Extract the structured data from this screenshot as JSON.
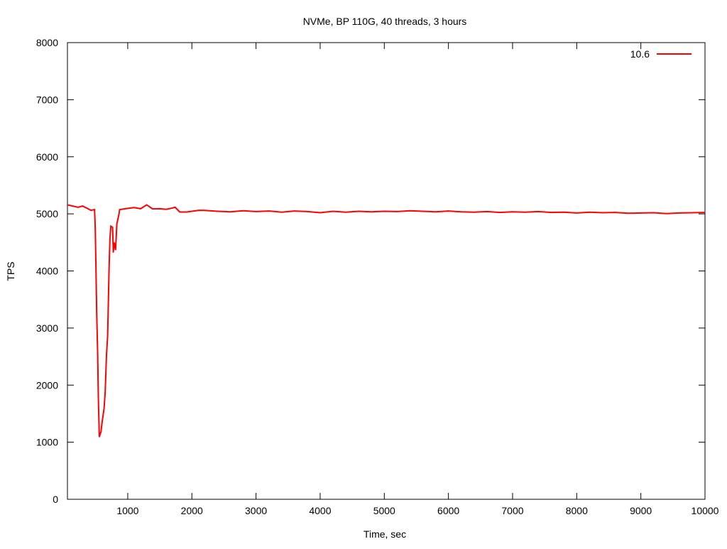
{
  "chart_data": {
    "type": "line",
    "title": "NVMe, BP 110G, 40 threads, 3 hours",
    "xlabel": "Time, sec",
    "ylabel": "TPS",
    "xlim": [
      60,
      10000
    ],
    "ylim": [
      0,
      8000
    ],
    "xticks": [
      1000,
      2000,
      3000,
      4000,
      5000,
      6000,
      7000,
      8000,
      9000,
      10000
    ],
    "yticks": [
      0,
      1000,
      2000,
      3000,
      4000,
      5000,
      6000,
      7000,
      8000
    ],
    "grid": false,
    "legend": "top-right",
    "series": [
      {
        "name": "10.6",
        "color": "#ff0000",
        "x": [
          60,
          225,
          296,
          427,
          483,
          494,
          505,
          516,
          531,
          542,
          557,
          583,
          605,
          631,
          649,
          668,
          686,
          697,
          708,
          723,
          737,
          764,
          775,
          789,
          811,
          830,
          859,
          875,
          1000,
          1100,
          1200,
          1295,
          1387,
          1500,
          1600,
          1700,
          1738,
          1811,
          1922,
          2107,
          2200,
          2400,
          2600,
          2800,
          3000,
          3200,
          3400,
          3600,
          3800,
          4000,
          4200,
          4400,
          4600,
          4800,
          5000,
          5200,
          5400,
          5600,
          5800,
          6000,
          6200,
          6400,
          6600,
          6800,
          7000,
          7200,
          7400,
          7600,
          7800,
          8000,
          8200,
          8400,
          8600,
          8800,
          9000,
          9200,
          9400,
          9600,
          9800,
          10000
        ],
        "y": [
          5158,
          5116,
          5137,
          5062,
          5075,
          4743,
          4017,
          3271,
          2525,
          1803,
          1095,
          1182,
          1385,
          1592,
          1882,
          2504,
          2861,
          3375,
          3980,
          4577,
          4785,
          4764,
          4328,
          4494,
          4370,
          4826,
          4971,
          5075,
          5096,
          5110,
          5090,
          5158,
          5087,
          5090,
          5080,
          5103,
          5116,
          5033,
          5033,
          5062,
          5060,
          5045,
          5035,
          5055,
          5040,
          5050,
          5030,
          5050,
          5040,
          5020,
          5045,
          5030,
          5045,
          5035,
          5045,
          5040,
          5055,
          5045,
          5035,
          5050,
          5035,
          5030,
          5040,
          5025,
          5035,
          5030,
          5040,
          5025,
          5030,
          5015,
          5030,
          5020,
          5025,
          5010,
          5015,
          5020,
          5005,
          5015,
          5020,
          5025
        ]
      }
    ]
  }
}
